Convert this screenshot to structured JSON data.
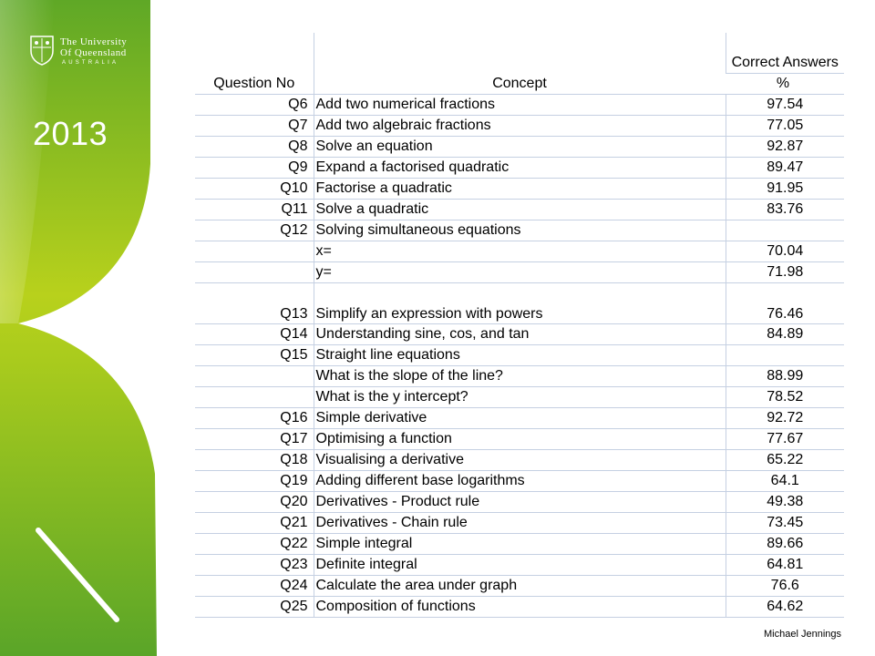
{
  "sidebar": {
    "logo_line1": "The University",
    "logo_line2": "Of Queensland",
    "logo_line3": "AUSTRALIA",
    "year": "2013",
    "colors": {
      "green": "#6ab023",
      "lime": "#b9d01a",
      "white_line": "#ffffff"
    }
  },
  "table": {
    "headers": {
      "question": "Question No",
      "concept": "Concept",
      "correct": "Correct Answers",
      "unit": "%"
    },
    "rows": [
      {
        "q": "Q6",
        "concept": "Add two numerical fractions",
        "pct": "97.54"
      },
      {
        "q": "Q7",
        "concept": "Add two algebraic fractions",
        "pct": "77.05"
      },
      {
        "q": "Q8",
        "concept": "Solve an equation",
        "pct": "92.87"
      },
      {
        "q": "Q9",
        "concept": "Expand a factorised quadratic",
        "pct": "89.47"
      },
      {
        "q": "Q10",
        "concept": "Factorise a quadratic",
        "pct": "91.95"
      },
      {
        "q": "Q11",
        "concept": "Solve a quadratic",
        "pct": "83.76"
      },
      {
        "q": "Q12",
        "concept": "Solving simultaneous equations",
        "pct": ""
      },
      {
        "q": "",
        "concept": "x=",
        "pct": "70.04"
      },
      {
        "q": "",
        "concept": "y=",
        "pct": "71.98"
      },
      {
        "q": "Q13",
        "concept": "Simplify an expression with powers",
        "pct": "76.46"
      },
      {
        "q": "Q14",
        "concept": "Understanding sine, cos, and tan",
        "pct": "84.89"
      },
      {
        "q": "Q15",
        "concept": "Straight line equations",
        "pct": ""
      },
      {
        "q": "",
        "concept": "What is the slope of the line?",
        "pct": "88.99"
      },
      {
        "q": "",
        "concept": "What is the y intercept?",
        "pct": "78.52"
      },
      {
        "q": "Q16",
        "concept": "Simple derivative",
        "pct": "92.72"
      },
      {
        "q": "Q17",
        "concept": "Optimising a function",
        "pct": "77.67"
      },
      {
        "q": "Q18",
        "concept": "Visualising a derivative",
        "pct": "65.22"
      },
      {
        "q": "Q19",
        "concept": "Adding different base logarithms",
        "pct": "64.1"
      },
      {
        "q": "Q20",
        "concept": "Derivatives - Product rule",
        "pct": "49.38"
      },
      {
        "q": "Q21",
        "concept": "Derivatives - Chain rule",
        "pct": "73.45"
      },
      {
        "q": "Q22",
        "concept": "Simple integral",
        "pct": "89.66"
      },
      {
        "q": "Q23",
        "concept": "Definite integral",
        "pct": "64.81"
      },
      {
        "q": "Q24",
        "concept": "Calculate the area under graph",
        "pct": "76.6"
      },
      {
        "q": "Q25",
        "concept": "Composition of functions",
        "pct": "64.62"
      }
    ]
  },
  "footer": {
    "author": "Michael Jennings"
  }
}
